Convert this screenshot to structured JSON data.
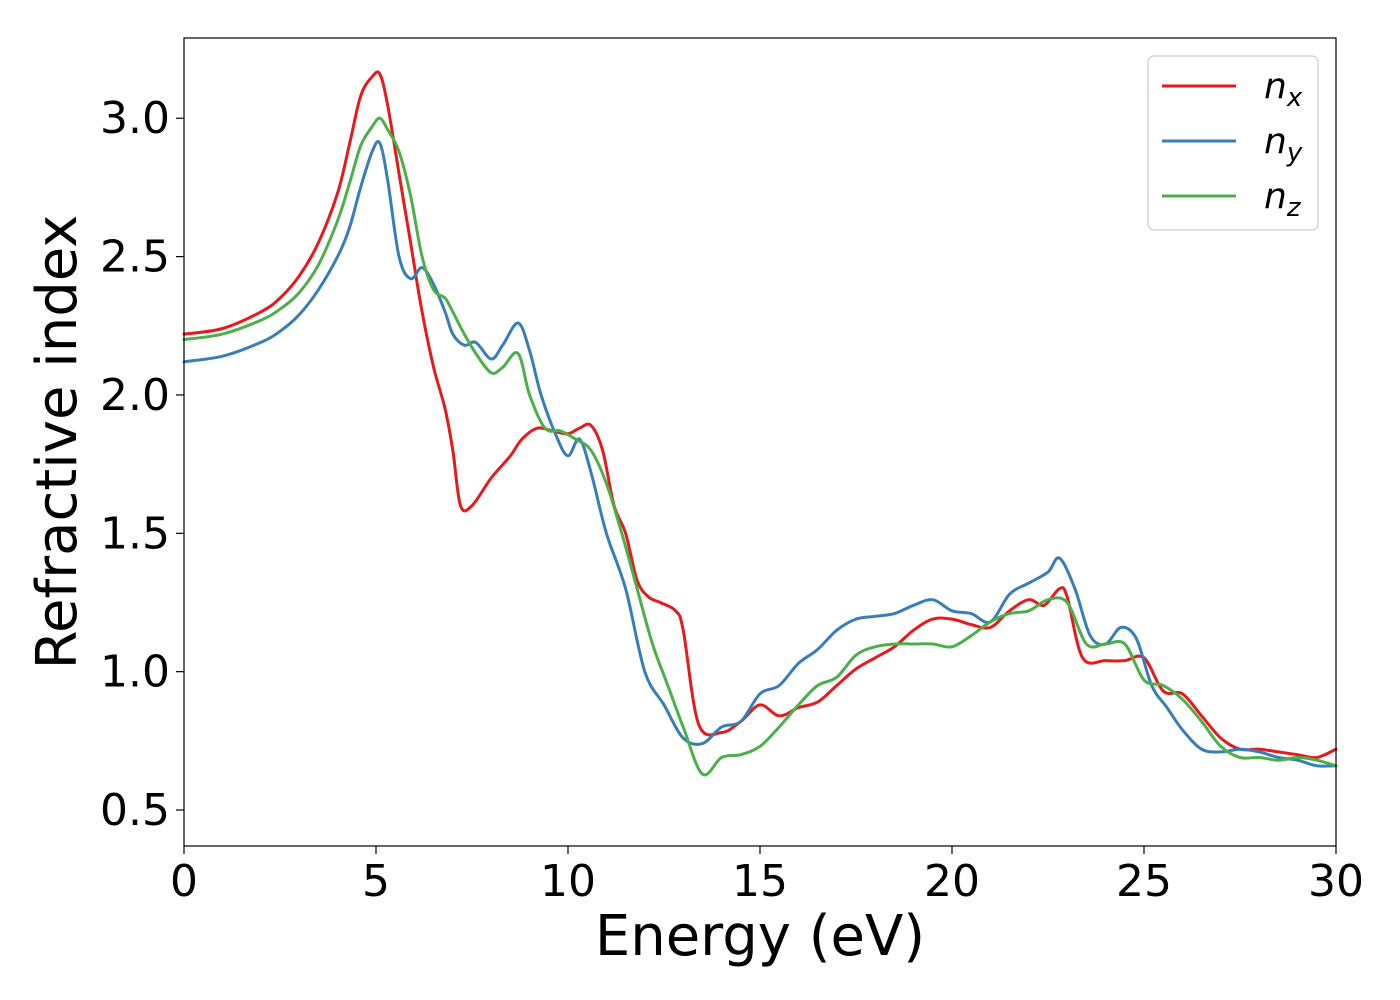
{
  "chart_data": {
    "type": "line",
    "xlabel": "Energy (eV)",
    "ylabel": "Refractive index",
    "xlim": [
      0,
      30
    ],
    "ylim": [
      0.37,
      3.29
    ],
    "xticks": [
      0,
      5,
      10,
      15,
      20,
      25,
      30
    ],
    "xtick_labels": [
      "0",
      "5",
      "10",
      "15",
      "20",
      "25",
      "30"
    ],
    "yticks": [
      0.5,
      1.0,
      1.5,
      2.0,
      2.5,
      3.0
    ],
    "ytick_labels": [
      "0.5",
      "1.0",
      "1.5",
      "2.0",
      "2.5",
      "3.0"
    ],
    "grid": false,
    "legend_position": "upper right",
    "series": [
      {
        "name": "n_x",
        "label_base": "n",
        "label_sub": "x",
        "color": "#e41a1c",
        "x": [
          0,
          1,
          2,
          2.5,
          3,
          3.5,
          4,
          4.3,
          4.6,
          4.9,
          5.1,
          5.3,
          5.6,
          5.9,
          6.2,
          6.5,
          6.8,
          7.0,
          7.2,
          7.5,
          8.0,
          8.5,
          8.8,
          9.2,
          9.6,
          10.0,
          10.3,
          10.6,
          10.9,
          11.2,
          11.5,
          11.8,
          12.1,
          12.4,
          12.8,
          13.0,
          13.4,
          14.0,
          14.5,
          15.0,
          15.5,
          16,
          16.5,
          17,
          17.5,
          18,
          18.5,
          19,
          19.5,
          20,
          20.5,
          21,
          21.5,
          22,
          22.4,
          22.8,
          23.0,
          23.4,
          24.0,
          24.5,
          25.0,
          25.5,
          26,
          26.5,
          27,
          27.5,
          28,
          28.5,
          29,
          29.5,
          30
        ],
        "y": [
          2.22,
          2.24,
          2.3,
          2.35,
          2.43,
          2.55,
          2.73,
          2.9,
          3.08,
          3.15,
          3.16,
          3.05,
          2.8,
          2.55,
          2.3,
          2.1,
          1.95,
          1.8,
          1.6,
          1.6,
          1.7,
          1.78,
          1.84,
          1.88,
          1.87,
          1.86,
          1.88,
          1.89,
          1.8,
          1.6,
          1.5,
          1.33,
          1.27,
          1.25,
          1.22,
          1.15,
          0.81,
          0.78,
          0.82,
          0.88,
          0.84,
          0.87,
          0.89,
          0.95,
          1.01,
          1.05,
          1.09,
          1.15,
          1.19,
          1.19,
          1.17,
          1.16,
          1.22,
          1.26,
          1.24,
          1.3,
          1.27,
          1.05,
          1.04,
          1.04,
          1.05,
          0.93,
          0.92,
          0.84,
          0.76,
          0.72,
          0.72,
          0.71,
          0.7,
          0.69,
          0.72
        ]
      },
      {
        "name": "n_y",
        "label_base": "n",
        "label_sub": "y",
        "color": "#377eb8",
        "x": [
          0,
          1,
          2,
          2.5,
          3,
          3.5,
          4,
          4.3,
          4.6,
          4.9,
          5.1,
          5.3,
          5.6,
          5.9,
          6.2,
          6.5,
          6.8,
          7.0,
          7.3,
          7.6,
          8.0,
          8.3,
          8.7,
          9.0,
          9.3,
          9.7,
          10.0,
          10.3,
          10.6,
          11.0,
          11.5,
          12.0,
          12.5,
          13.0,
          13.5,
          14.0,
          14.5,
          15,
          15.5,
          16,
          16.5,
          17,
          17.5,
          18,
          18.5,
          19,
          19.5,
          20,
          20.5,
          21,
          21.5,
          22,
          22.5,
          22.8,
          23.2,
          23.6,
          24.0,
          24.4,
          24.8,
          25.2,
          25.6,
          26,
          26.5,
          27,
          27.5,
          28,
          28.5,
          29,
          29.5,
          30
        ],
        "y": [
          2.12,
          2.14,
          2.19,
          2.23,
          2.29,
          2.38,
          2.5,
          2.6,
          2.75,
          2.88,
          2.91,
          2.78,
          2.5,
          2.42,
          2.46,
          2.4,
          2.3,
          2.22,
          2.18,
          2.19,
          2.13,
          2.18,
          2.26,
          2.16,
          2.0,
          1.85,
          1.78,
          1.84,
          1.72,
          1.5,
          1.3,
          1.0,
          0.88,
          0.76,
          0.74,
          0.8,
          0.82,
          0.92,
          0.95,
          1.03,
          1.08,
          1.15,
          1.19,
          1.2,
          1.21,
          1.24,
          1.26,
          1.22,
          1.21,
          1.18,
          1.28,
          1.32,
          1.36,
          1.41,
          1.3,
          1.13,
          1.1,
          1.16,
          1.12,
          0.95,
          0.87,
          0.79,
          0.72,
          0.71,
          0.72,
          0.71,
          0.69,
          0.68,
          0.66,
          0.66
        ]
      },
      {
        "name": "n_z",
        "label_base": "n",
        "label_sub": "z",
        "color": "#4daf4a",
        "x": [
          0,
          1,
          2,
          2.5,
          3,
          3.5,
          4,
          4.3,
          4.6,
          4.9,
          5.1,
          5.3,
          5.6,
          5.9,
          6.2,
          6.5,
          6.8,
          7.0,
          7.3,
          7.6,
          8.0,
          8.3,
          8.7,
          9.0,
          9.4,
          9.8,
          10.2,
          10.6,
          11.0,
          11.4,
          11.8,
          12.2,
          12.6,
          13.0,
          13.5,
          14.0,
          14.5,
          15.0,
          15.5,
          16,
          16.5,
          17,
          17.5,
          18,
          18.5,
          19,
          19.5,
          20,
          20.5,
          21,
          21.5,
          22,
          22.5,
          23.0,
          23.5,
          24.0,
          24.5,
          25.0,
          25.5,
          26,
          26.5,
          27,
          27.5,
          28,
          28.5,
          29,
          29.5,
          30
        ],
        "y": [
          2.2,
          2.22,
          2.27,
          2.31,
          2.37,
          2.47,
          2.63,
          2.76,
          2.9,
          2.97,
          3.0,
          2.96,
          2.88,
          2.72,
          2.5,
          2.38,
          2.35,
          2.3,
          2.22,
          2.15,
          2.08,
          2.1,
          2.15,
          2.0,
          1.88,
          1.87,
          1.84,
          1.8,
          1.68,
          1.5,
          1.3,
          1.1,
          0.95,
          0.8,
          0.63,
          0.69,
          0.7,
          0.73,
          0.8,
          0.88,
          0.95,
          0.98,
          1.06,
          1.09,
          1.1,
          1.1,
          1.1,
          1.09,
          1.13,
          1.18,
          1.21,
          1.22,
          1.26,
          1.25,
          1.1,
          1.1,
          1.1,
          0.97,
          0.95,
          0.9,
          0.82,
          0.73,
          0.69,
          0.69,
          0.68,
          0.69,
          0.68,
          0.66
        ]
      }
    ]
  }
}
